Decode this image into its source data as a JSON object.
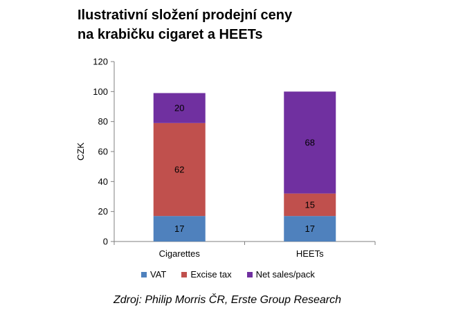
{
  "chart_data": {
    "type": "bar",
    "stacked": true,
    "title": "Ilustrativní složení prodejní ceny na krabičku cigaret a HEETs",
    "title_lines": [
      "Ilustrativní složení prodejní ceny",
      "na krabičku cigaret a HEETs"
    ],
    "ylabel": "CZK",
    "xlabel": "",
    "ylim": [
      0,
      120
    ],
    "yticks": [
      0,
      20,
      40,
      60,
      80,
      100,
      120
    ],
    "categories": [
      "Cigarettes",
      "HEETs"
    ],
    "series": [
      {
        "name": "VAT",
        "values": [
          17,
          17
        ],
        "color": "#4f81bd"
      },
      {
        "name": "Excise tax",
        "values": [
          62,
          15
        ],
        "color": "#c0504d"
      },
      {
        "name": "Net sales/pack",
        "values": [
          20,
          68
        ],
        "color": "#7030a0"
      }
    ],
    "legend_position": "bottom",
    "grid": false,
    "source": "Zdroj: Philip Morris ČR, Erste Group Research"
  }
}
